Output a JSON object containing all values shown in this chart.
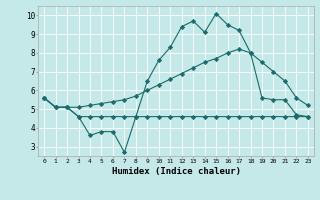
{
  "xlabel": "Humidex (Indice chaleur)",
  "bg_color": "#c5e8e8",
  "line_color": "#1a6b6b",
  "grid_color": "#ffffff",
  "xlim": [
    -0.5,
    23.5
  ],
  "ylim": [
    2.5,
    10.5
  ],
  "yticks": [
    3,
    4,
    5,
    6,
    7,
    8,
    9,
    10
  ],
  "xticks": [
    0,
    1,
    2,
    3,
    4,
    5,
    6,
    7,
    8,
    9,
    10,
    11,
    12,
    13,
    14,
    15,
    16,
    17,
    18,
    19,
    20,
    21,
    22,
    23
  ],
  "line1_x": [
    0,
    1,
    2,
    3,
    4,
    5,
    6,
    7,
    8,
    9,
    10,
    11,
    12,
    13,
    14,
    15,
    16,
    17,
    18,
    19,
    20,
    21,
    22,
    23
  ],
  "line1_y": [
    5.6,
    5.1,
    5.1,
    4.6,
    3.6,
    3.8,
    3.8,
    2.7,
    4.6,
    6.5,
    7.6,
    8.3,
    9.4,
    9.7,
    9.1,
    10.1,
    9.5,
    9.2,
    8.0,
    5.6,
    5.5,
    5.5,
    4.7,
    4.6
  ],
  "line2_x": [
    0,
    1,
    2,
    3,
    4,
    5,
    6,
    7,
    8,
    9,
    10,
    11,
    12,
    13,
    14,
    15,
    16,
    17,
    18,
    19,
    20,
    21,
    22,
    23
  ],
  "line2_y": [
    5.6,
    5.1,
    5.1,
    4.6,
    4.6,
    4.6,
    4.6,
    4.6,
    4.6,
    4.6,
    4.6,
    4.6,
    4.6,
    4.6,
    4.6,
    4.6,
    4.6,
    4.6,
    4.6,
    4.6,
    4.6,
    4.6,
    4.6,
    4.6
  ],
  "line3_x": [
    0,
    1,
    2,
    3,
    4,
    5,
    6,
    7,
    8,
    9,
    10,
    11,
    12,
    13,
    14,
    15,
    16,
    17,
    18,
    19,
    20,
    21,
    22,
    23
  ],
  "line3_y": [
    5.6,
    5.1,
    5.1,
    5.1,
    5.2,
    5.3,
    5.4,
    5.5,
    5.7,
    6.0,
    6.3,
    6.6,
    6.9,
    7.2,
    7.5,
    7.7,
    8.0,
    8.2,
    8.0,
    7.5,
    7.0,
    6.5,
    5.6,
    5.2
  ]
}
